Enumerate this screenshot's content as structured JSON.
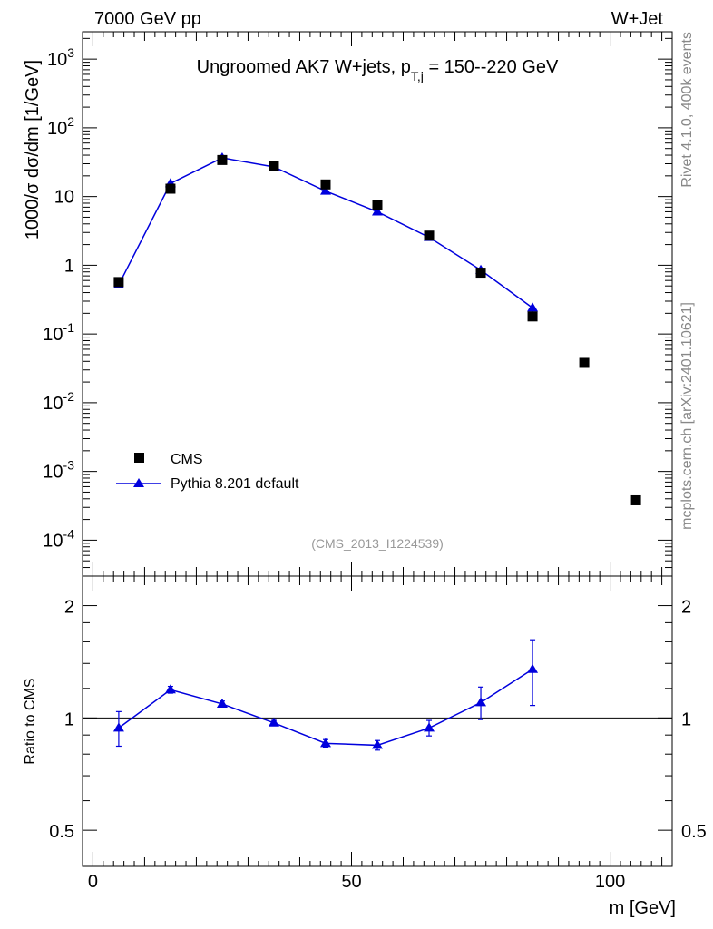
{
  "header": {
    "left": "7000 GeV pp",
    "right": "W+Jet"
  },
  "side_text": {
    "rivet": "Rivet 4.1.0,  400k events",
    "mcplots": "mcplots.cern.ch [arXiv:2401.10621]"
  },
  "colors": {
    "data": "#000000",
    "mc": "#0000dd",
    "watermark": "#999999",
    "side": "#888888"
  },
  "chart_data": [
    {
      "type": "scatter",
      "panel": "main",
      "title": {
        "main": "Ungroomed AK7 W+jets, p",
        "sub": "T,j",
        "rest": " = 150--220 GeV"
      },
      "ylabel": {
        "pre": "1000/σ  dσ/dm [1/GeV]"
      },
      "yscale": "log",
      "ylim": [
        3e-05,
        2500
      ],
      "xlim": [
        -2,
        112
      ],
      "ytick_labels": [
        {
          "base": "10",
          "exp": "-4",
          "value": 0.0001
        },
        {
          "base": "10",
          "exp": "-3",
          "value": 0.001
        },
        {
          "base": "10",
          "exp": "-2",
          "value": 0.01
        },
        {
          "base": "10",
          "exp": "-1",
          "value": 0.1
        },
        {
          "base": "1",
          "exp": "",
          "value": 1
        },
        {
          "base": "10",
          "exp": "",
          "value": 10
        },
        {
          "base": "10",
          "exp": "2",
          "value": 100
        },
        {
          "base": "10",
          "exp": "3",
          "value": 1000
        }
      ],
      "watermark": "(CMS_2013_I1224539)",
      "legend": {
        "position": "lower-left",
        "entries": [
          "CMS",
          "Pythia 8.201 default"
        ]
      },
      "series": [
        {
          "name": "CMS",
          "marker": "square",
          "x": [
            5,
            15,
            25,
            35,
            45,
            55,
            65,
            75,
            85,
            95,
            105
          ],
          "values": [
            0.57,
            13.0,
            34.0,
            28.0,
            15.0,
            7.5,
            2.7,
            0.78,
            0.18,
            0.038,
            0.00038
          ]
        },
        {
          "name": "Pythia 8.201 default",
          "marker": "triangle",
          "line": true,
          "x": [
            5,
            15,
            25,
            35,
            45,
            55,
            65,
            75,
            85
          ],
          "values": [
            0.52,
            15.5,
            36.5,
            27.0,
            12.0,
            6.0,
            2.55,
            0.85,
            0.24
          ],
          "err_low": [
            0.03,
            0.5,
            0.6,
            0.4,
            0.3,
            0.2,
            0.08,
            0.05,
            0.04
          ],
          "err_high": [
            0.03,
            0.5,
            0.6,
            0.4,
            0.3,
            0.2,
            0.08,
            0.05,
            0.04
          ]
        }
      ]
    },
    {
      "type": "line",
      "panel": "ratio",
      "ylabel": "Ratio to CMS",
      "xlabel": "m [GeV]",
      "yscale": "log",
      "ylim": [
        0.4,
        2.4
      ],
      "xlim": [
        -2,
        112
      ],
      "xticks": [
        0,
        50,
        100
      ],
      "xtick_labels": [
        "0",
        "50",
        "100"
      ],
      "yticks": [
        0.5,
        1,
        2
      ],
      "ytick_labels": [
        "0.5",
        "1",
        "2"
      ],
      "reference_line": 1,
      "series": [
        {
          "name": "Pythia 8.201 default / CMS",
          "x": [
            5,
            15,
            25,
            35,
            45,
            55,
            65,
            75,
            85
          ],
          "values": [
            0.94,
            1.19,
            1.09,
            0.97,
            0.855,
            0.845,
            0.94,
            1.1,
            1.35
          ],
          "err_low": [
            0.1,
            0.025,
            0.02,
            0.015,
            0.02,
            0.025,
            0.045,
            0.11,
            0.27
          ],
          "err_high": [
            0.1,
            0.025,
            0.02,
            0.015,
            0.02,
            0.025,
            0.045,
            0.11,
            0.27
          ]
        }
      ]
    }
  ]
}
